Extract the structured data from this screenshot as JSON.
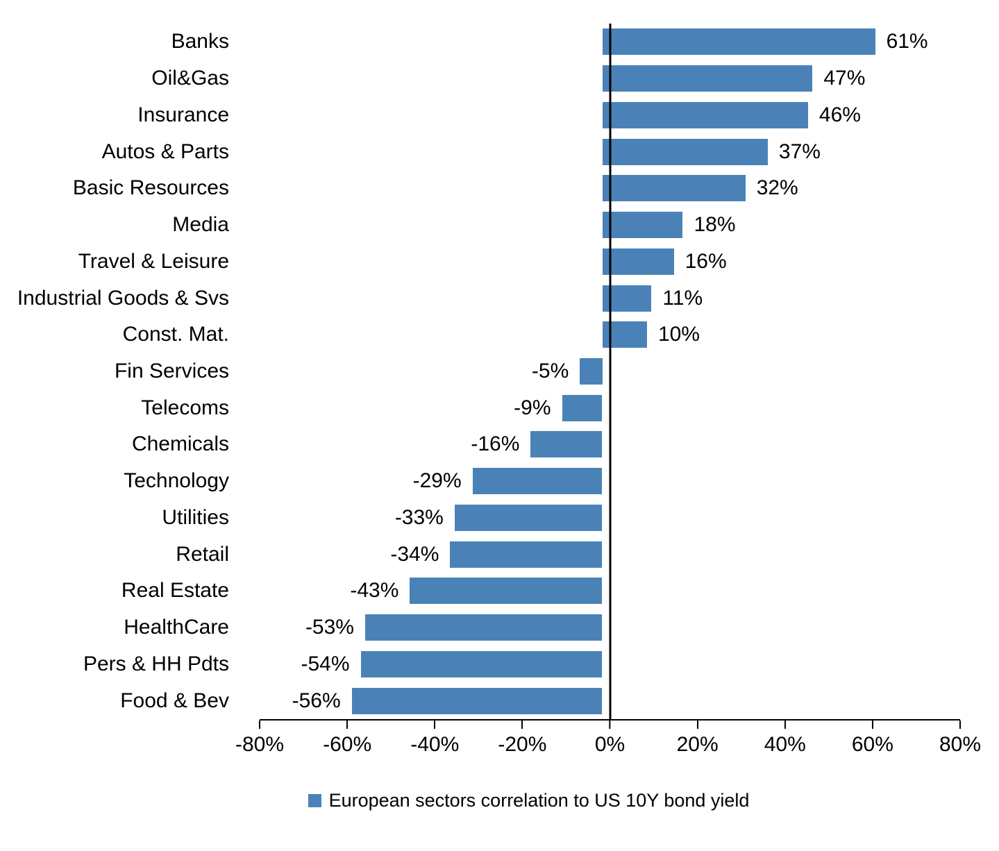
{
  "chart_data": {
    "type": "bar",
    "orientation": "horizontal",
    "title": "",
    "xlabel": "",
    "ylabel": "",
    "grid": false,
    "bar_color": "#4a82b8",
    "xlim": [
      -80,
      80
    ],
    "categories": [
      "Banks",
      "Oil&Gas",
      "Insurance",
      "Autos & Parts",
      "Basic Resources",
      "Media",
      "Travel & Leisure",
      "Industrial Goods & Svs",
      "Const. Mat.",
      "Fin Services",
      "Telecoms",
      "Chemicals",
      "Technology",
      "Utilities",
      "Retail",
      "Real Estate",
      "HealthCare",
      "Pers & HH Pdts",
      "Food & Bev"
    ],
    "values": [
      61,
      47,
      46,
      37,
      32,
      18,
      16,
      11,
      10,
      -5,
      -9,
      -16,
      -29,
      -33,
      -34,
      -43,
      -53,
      -54,
      -56
    ],
    "value_labels": [
      "61%",
      "47%",
      "46%",
      "37%",
      "32%",
      "18%",
      "16%",
      "11%",
      "10%",
      "-5%",
      "-9%",
      "-16%",
      "-29%",
      "-33%",
      "-34%",
      "-43%",
      "-53%",
      "-54%",
      "-56%"
    ],
    "x_tick_values": [
      -80,
      -60,
      -40,
      -20,
      0,
      20,
      40,
      60,
      80
    ],
    "x_ticks": [
      "-80%",
      "-60%",
      "-40%",
      "-20%",
      "0%",
      "20%",
      "40%",
      "60%",
      "80%"
    ],
    "legend_position": "bottom",
    "legend": [
      {
        "label": "European sectors correlation to US 10Y bond yield",
        "color": "#4a82b8"
      }
    ]
  }
}
